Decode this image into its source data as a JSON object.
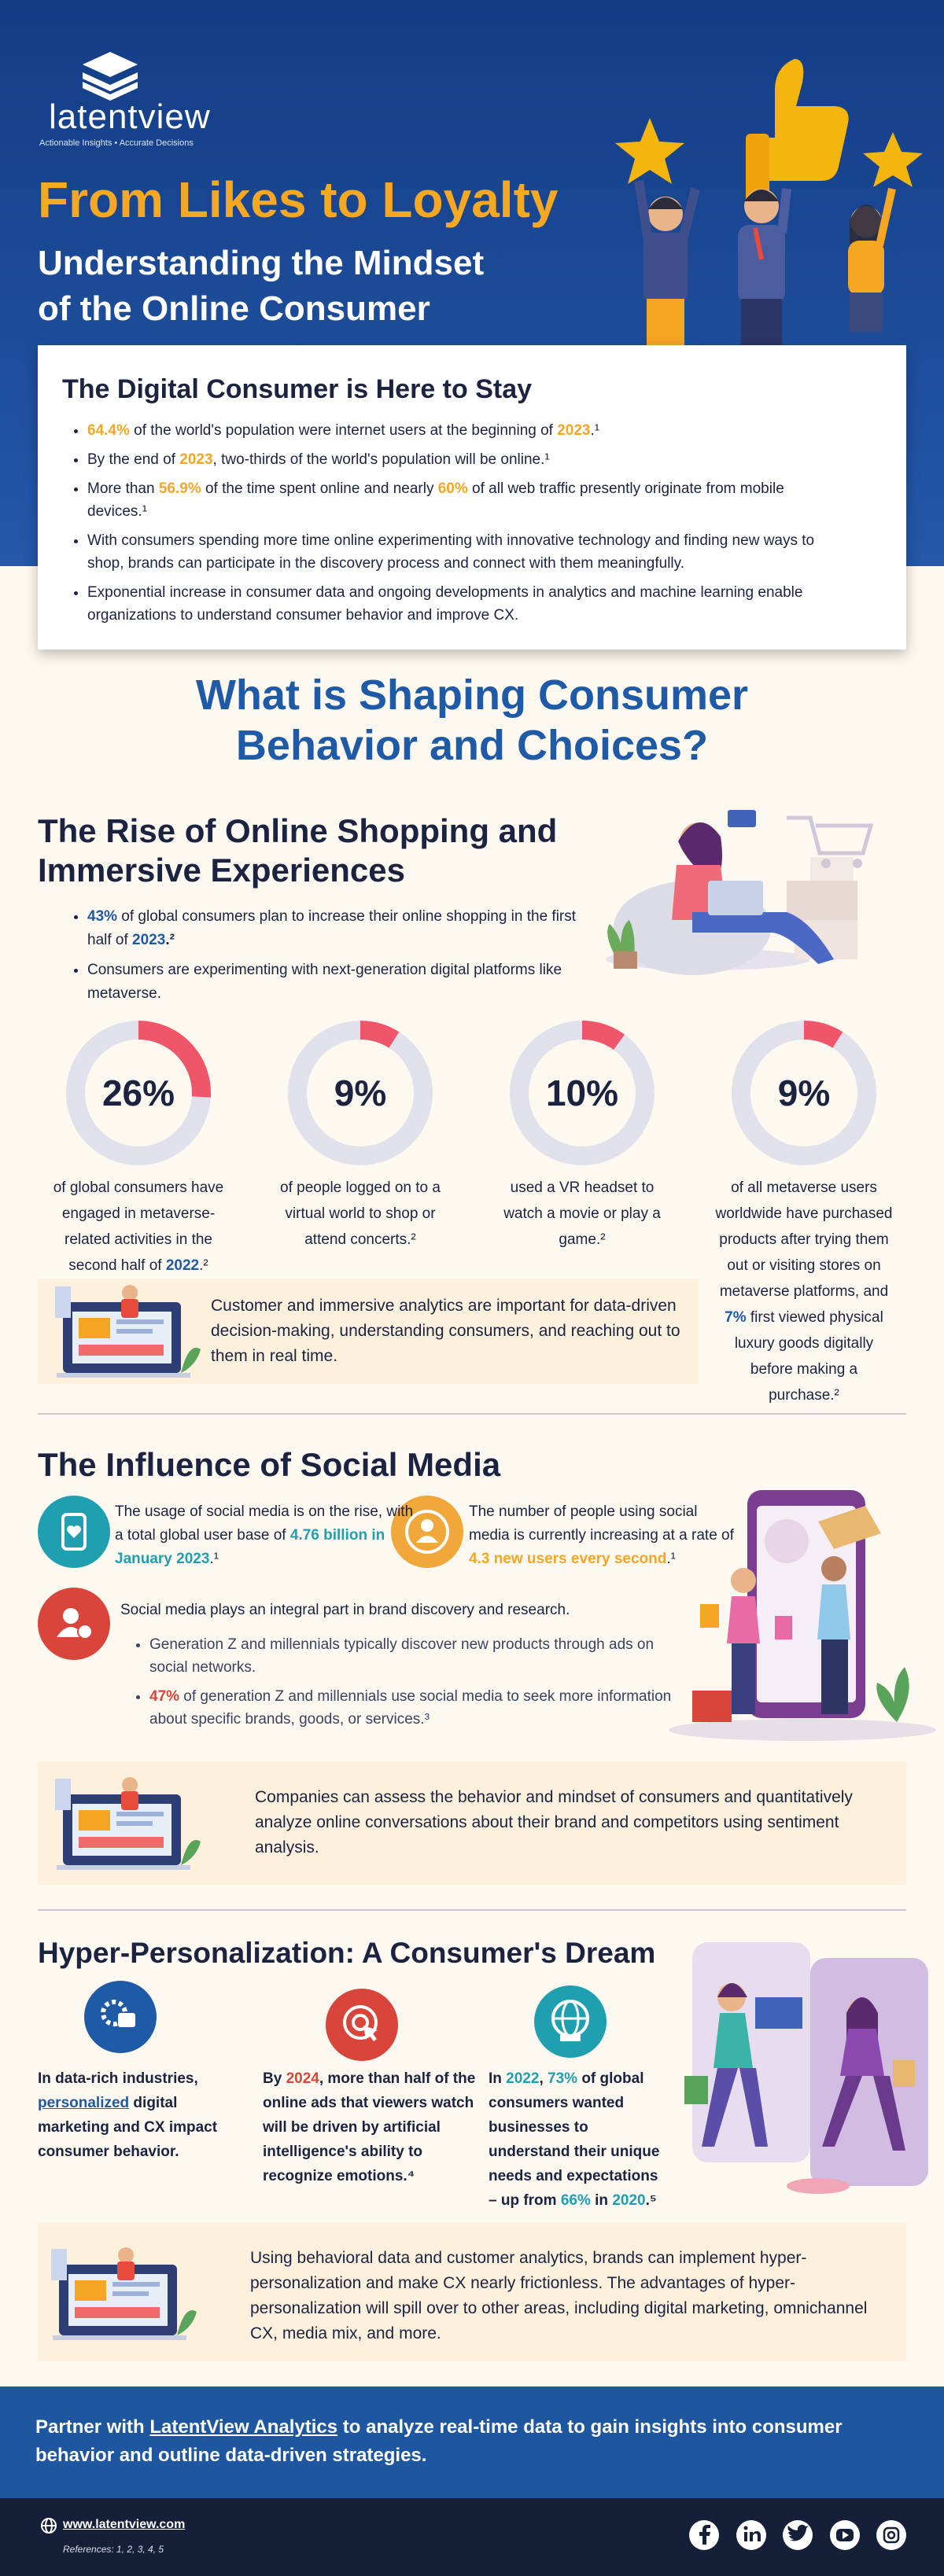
{
  "header": {
    "logo": "latentview",
    "tagline": "Actionable Insights • Accurate Decisions",
    "title": "From Likes to Loyalty",
    "subtitle": [
      "Understanding the Mindset",
      "of the Online Consumer"
    ]
  },
  "intro": {
    "title": "The Digital Consumer is Here to Stay",
    "bullets": [
      [
        "64.4%",
        " of the world's population were internet users at the beginning of ",
        "2023",
        ".¹"
      ],
      [
        "By the end of ",
        "2023",
        ", two-thirds of the world's population will be online.¹"
      ],
      [
        "More than ",
        "56.9%",
        " of the time spent online and nearly ",
        "60%",
        " of all web traffic presently originate from mobile devices.¹"
      ],
      [
        "With consumers spending more time online experimenting with innovative technology and finding new ways to shop, brands can participate in the discovery process and connect with them meaningfully."
      ],
      [
        "Exponential increase in consumer data and ongoing developments in analytics and machine learning enable organizations to understand consumer behavior and improve CX."
      ]
    ]
  },
  "section_heading": [
    "What is Shaping Consumer",
    "Behavior and Choices?"
  ],
  "online": {
    "title": [
      "The Rise of Online Shopping and",
      "Immersive Experiences"
    ],
    "bullets": [
      [
        "43%",
        " of global consumers plan to increase their online shopping in the first half of ",
        "2023",
        ".²"
      ],
      [
        "Consumers are experimenting with next-generation digital platforms like metaverse."
      ]
    ],
    "stats": [
      {
        "value": 26,
        "label": "26%",
        "caption": [
          "of global consumers have engaged in metaverse-related activities in the second half of ",
          "2022",
          ".²"
        ]
      },
      {
        "value": 9,
        "label": "9%",
        "caption": [
          "of people logged on to a virtual world to shop or attend concerts.²"
        ]
      },
      {
        "value": 10,
        "label": "10%",
        "caption": [
          "used a VR headset to watch a movie or play a game.²"
        ]
      },
      {
        "value": 9,
        "label": "9%",
        "caption": [
          "of all metaverse users worldwide have purchased products after trying them out or visiting stores on metaverse platforms, and ",
          "7%",
          " first viewed physical luxury goods digitally before making a purchase.²"
        ]
      }
    ],
    "callout": "Customer and immersive analytics are important for data-driven decision-making, understanding consumers, and reaching out to them in real time."
  },
  "social": {
    "title": "The Influence of Social Media",
    "facts": [
      [
        "The usage of social media is on the rise, with a total global user base of ",
        "4.76 billion in January 2023",
        ".¹"
      ],
      [
        "The number of people using social media is currently increasing at a rate of ",
        "4.3 new users every second",
        ".¹"
      ]
    ],
    "brand": {
      "lead": "Social media plays an integral part in brand discovery and research.",
      "bullets": [
        [
          "Generation Z and millennials typically discover new products through ads on social networks."
        ],
        [
          "47%",
          " of generation Z and millennials use social media to seek more information about specific brands, goods, or services.³"
        ]
      ]
    },
    "callout": "Companies can assess the behavior and mindset of consumers and quantitatively analyze online conversations about their brand and competitors using sentiment analysis."
  },
  "personal": {
    "title": "Hyper-Personalization: A Consumer's Dream",
    "facts": [
      [
        "In data-rich industries, ",
        "personalized",
        " digital marketing and CX impact consumer behavior."
      ],
      [
        "By ",
        "2024",
        ", more than half of the online ads that viewers watch will be driven by artificial intelligence's ability to recognize emotions.⁴"
      ],
      [
        "In ",
        "2022",
        ", ",
        "73%",
        " of global consumers wanted businesses to understand their unique needs and expectations – up from ",
        "66%",
        " in ",
        "2020",
        ".⁵"
      ]
    ],
    "callout": "Using behavioral data and customer analytics, brands can implement hyper-personalization and make CX nearly frictionless. The advantages of hyper-personalization will spill over to other areas, including digital marketing, omnichannel CX, media mix, and more."
  },
  "footer": {
    "cta": [
      "Partner with ",
      "LatentView Analytics",
      " to analyze real-time data to gain insights into consumer behavior and outline data-driven strategies."
    ],
    "website": "www.latentview.com",
    "references": "References: 1, 2, 3, 4, 5"
  }
}
